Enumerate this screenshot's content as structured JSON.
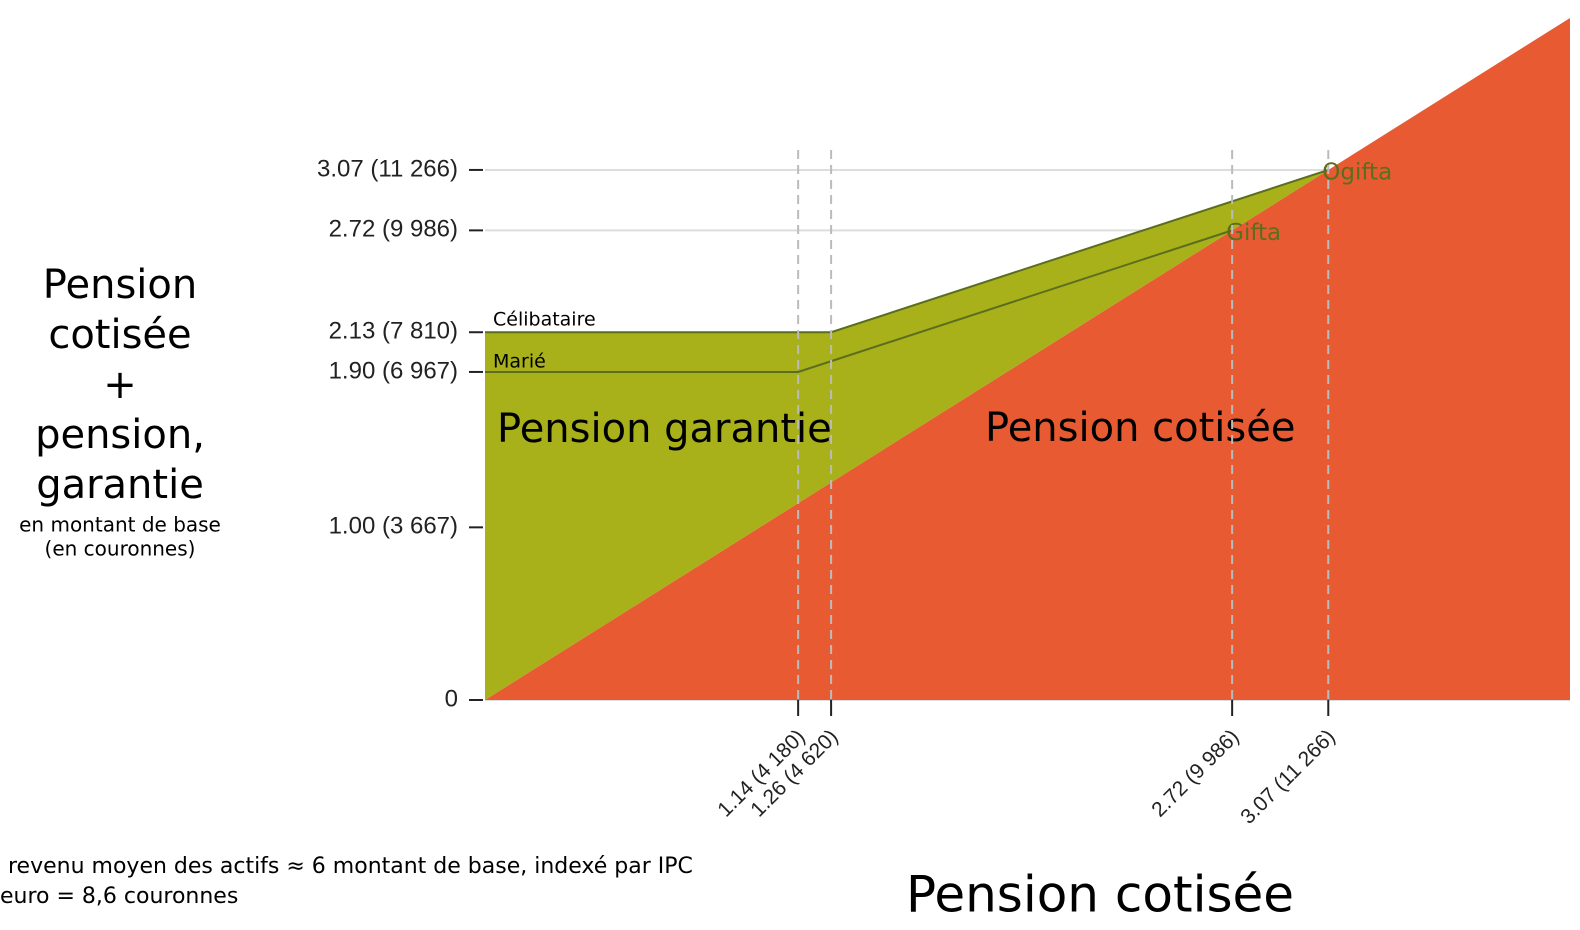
{
  "chart_data": {
    "type": "area",
    "ylabel": [
      "Pension",
      "cotisée",
      "+",
      "pension,",
      "garantie"
    ],
    "ylabel_sub": [
      "en montant de base",
      "(en couronnes)"
    ],
    "xlabel": "Pension cotisée",
    "notes": [
      "revenu moyen des actifs ≈ 6 montant de base, indexé par IPC",
      "euro = 8,6 couronnes"
    ],
    "xlim": [
      0,
      3.95
    ],
    "ylim": [
      0,
      3.95
    ],
    "xticks": [
      {
        "value": 1.14,
        "label": "1.14 (4 180)"
      },
      {
        "value": 1.26,
        "label": "1.26 (4 620)"
      },
      {
        "value": 2.72,
        "label": "2.72 (9 986)"
      },
      {
        "value": 3.07,
        "label": "3.07 (11 266)"
      }
    ],
    "yticks": [
      0,
      {
        "value": 1.0,
        "label": "1.00 (3 667)"
      },
      {
        "value": 1.9,
        "label": "1.90 (6 967)"
      },
      {
        "value": 2.13,
        "label": "2.13 (7 810)"
      },
      {
        "value": 2.72,
        "label": "2.72 (9 986)"
      },
      {
        "value": 3.07,
        "label": "3.07 (11 266)"
      }
    ],
    "grid": true,
    "series": [
      {
        "name": "Pension cotisée",
        "color": "#e85a32",
        "x": [
          0,
          3.95
        ],
        "values": [
          0,
          3.95
        ]
      },
      {
        "name": "Célibataire",
        "color": "#a8b01a",
        "area_label": "Pension garantie",
        "end_label": "Ogifta",
        "x": [
          0,
          1.26,
          3.07
        ],
        "values": [
          2.13,
          2.13,
          3.07
        ]
      },
      {
        "name": "Marié",
        "color": "#5a6e1e",
        "end_label": "Gifta",
        "x": [
          0,
          1.14,
          2.72
        ],
        "values": [
          1.9,
          1.9,
          2.72
        ]
      }
    ]
  }
}
